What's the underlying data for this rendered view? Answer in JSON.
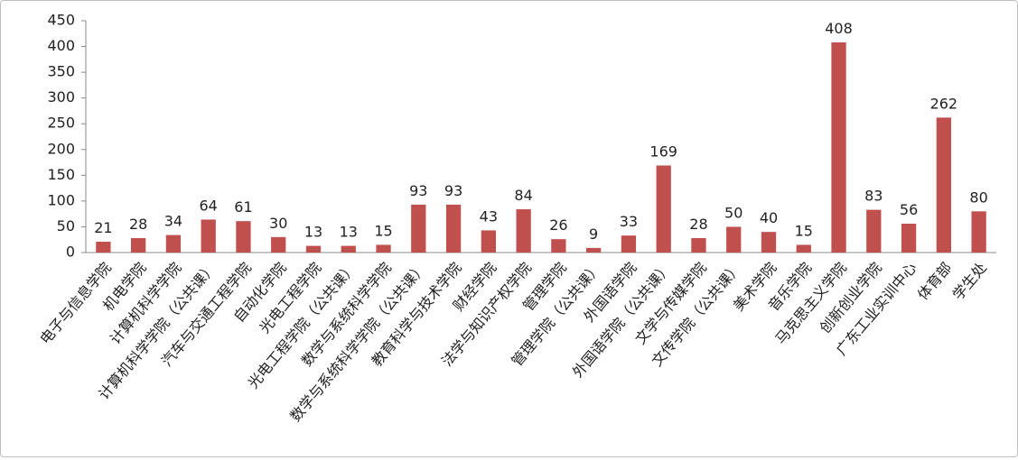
{
  "chart_data": {
    "type": "bar",
    "categories": [
      "电子与信息学院",
      "机电学院",
      "计算机科学学院",
      "计算机科学学院（公共课）",
      "汽车与交通工程学院",
      "自动化学院",
      "光电工程学院",
      "光电工程学院（公共课）",
      "数学与系统科学学院",
      "数学与系统科学学院（公共课）",
      "教育科学与技术学院",
      "财经学院",
      "法学与知识产权学院",
      "管理学院",
      "管理学院（公共课）",
      "外国语学院",
      "外国语学院（公共课）",
      "文学与传媒学院",
      "文传学院（公共课）",
      "美术学院",
      "音乐学院",
      "马克思主义学院",
      "创新创业学院",
      "广东工业实训中心",
      "体育部",
      "学生处"
    ],
    "values": [
      21,
      28,
      34,
      64,
      61,
      30,
      13,
      13,
      15,
      93,
      93,
      43,
      84,
      26,
      9,
      33,
      169,
      28,
      50,
      40,
      15,
      408,
      83,
      56,
      262,
      80
    ],
    "color": "#c0504d",
    "ylim": [
      0,
      450
    ],
    "yticks": [
      0,
      50,
      100,
      150,
      200,
      250,
      300,
      350,
      400,
      450
    ]
  }
}
